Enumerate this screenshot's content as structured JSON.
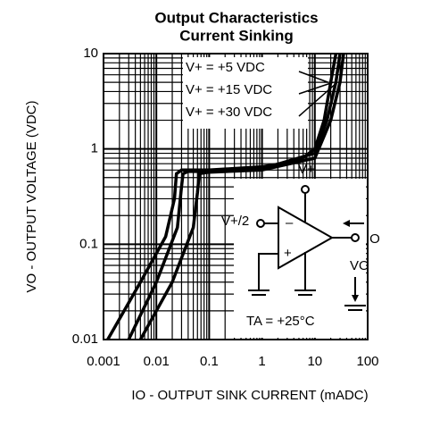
{
  "chart_data": {
    "type": "line",
    "title": "Output Characteristics",
    "subtitle": "Current Sinking",
    "x_label": "IO - OUTPUT SINK CURRENT (mADC)",
    "y_label": "VO - OUTPUT VOLTAGE (VDC)",
    "log_x": true,
    "log_y": true,
    "grid": true,
    "xlim": [
      0.001,
      100
    ],
    "ylim": [
      0.01,
      10
    ],
    "xticks": [
      0.001,
      0.01,
      0.1,
      1,
      10,
      100
    ],
    "yticks": [
      0.01,
      0.1,
      1,
      10
    ],
    "series": [
      {
        "name": "V+ = +5 VDC",
        "color": "#000000",
        "x": [
          0.0012,
          0.005,
          0.015,
          0.022,
          0.024,
          0.03,
          0.1,
          1,
          5,
          10,
          15,
          20,
          25
        ],
        "values": [
          0.01,
          0.04,
          0.12,
          0.3,
          0.55,
          0.6,
          0.6,
          0.65,
          0.75,
          1,
          2,
          5,
          10
        ]
      },
      {
        "name": "V+ = +15 VDC",
        "color": "#000000",
        "x": [
          0.003,
          0.01,
          0.025,
          0.03,
          0.032,
          0.04,
          0.1,
          1,
          10,
          17,
          25,
          30
        ],
        "values": [
          0.01,
          0.04,
          0.15,
          0.4,
          0.55,
          0.58,
          0.58,
          0.62,
          0.9,
          2,
          5,
          10
        ]
      },
      {
        "name": "V+ = +30 VDC",
        "color": "#000000",
        "x": [
          0.005,
          0.02,
          0.05,
          0.06,
          0.065,
          0.1,
          1,
          10,
          20,
          30,
          35
        ],
        "values": [
          0.01,
          0.04,
          0.15,
          0.35,
          0.55,
          0.57,
          0.6,
          0.8,
          2,
          5,
          10
        ]
      }
    ],
    "annotations": [
      "V+",
      "V+/2",
      "IO",
      "VO",
      "TA = +25°C"
    ]
  }
}
